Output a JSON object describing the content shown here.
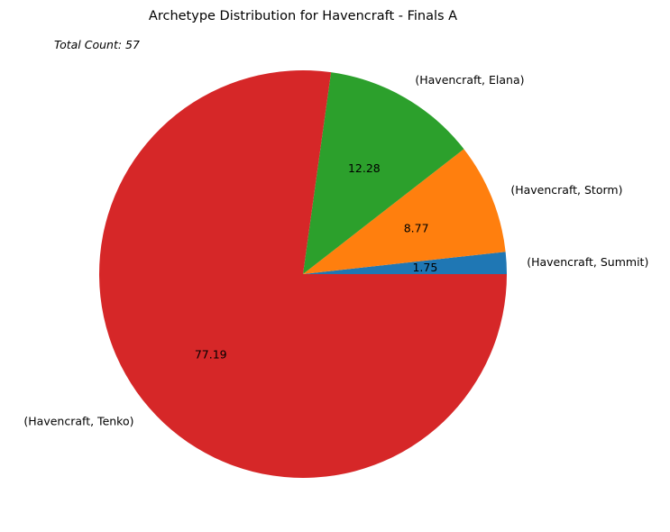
{
  "chart_data": {
    "type": "pie",
    "title": "Archetype Distribution for Havencraft - Finals A",
    "annotation": "Total Count: 57",
    "slices": [
      {
        "label": "(Havencraft, Summit)",
        "value": 1.75,
        "value_label": "1.75",
        "color": "#1f77b4"
      },
      {
        "label": "(Havencraft, Storm)",
        "value": 8.77,
        "value_label": "8.77",
        "color": "#ff7f0e"
      },
      {
        "label": "(Havencraft, Elana)",
        "value": 12.28,
        "value_label": "12.28",
        "color": "#2ca02c"
      },
      {
        "label": "(Havencraft, Tenko)",
        "value": 77.19,
        "value_label": "77.19",
        "color": "#d62728"
      }
    ],
    "start_angle_deg": 0,
    "direction": "counterclockwise",
    "legend": "none"
  }
}
